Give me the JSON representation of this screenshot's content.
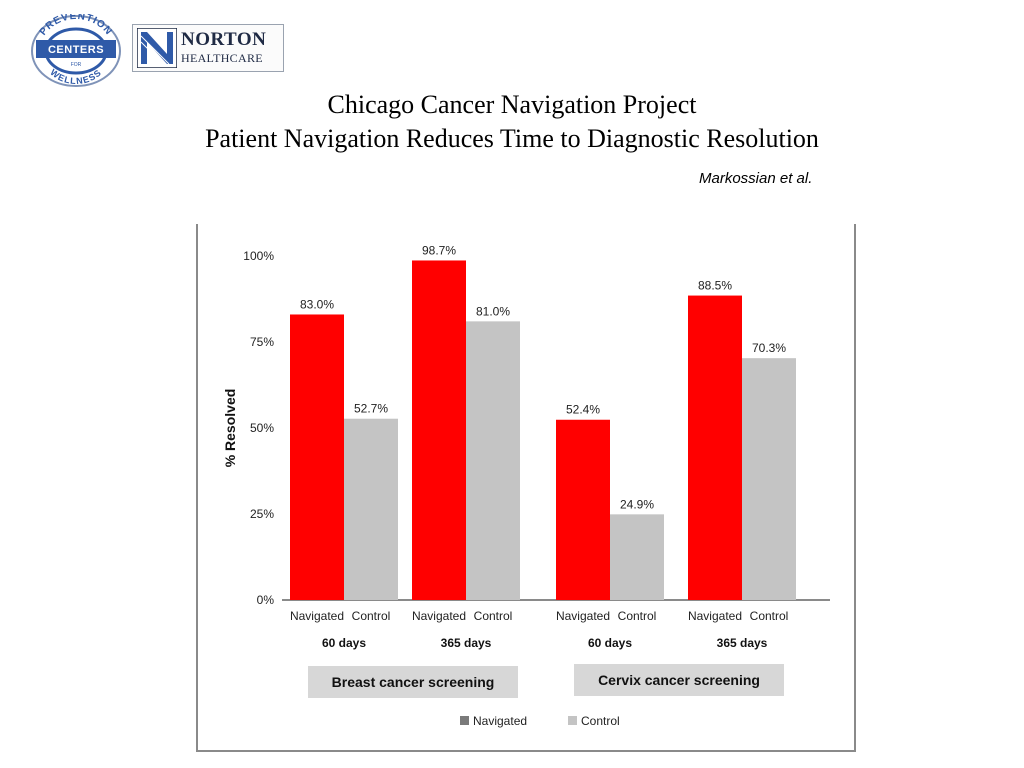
{
  "logos": {
    "prevention": {
      "ring_top": "PREVENTION",
      "center": "CENTERS",
      "small": "FOR",
      "ring_bottom": "WELLNESS"
    },
    "norton": {
      "line1": "NORTON",
      "line2": "HEALTHCARE"
    }
  },
  "slide": {
    "title_line1": "Chicago Cancer Navigation Project",
    "title_line2": "Patient Navigation Reduces Time to Diagnostic Resolution",
    "author": "Markossian et al."
  },
  "colors": {
    "navigated": "#ff0000",
    "control": "#c4c4c4",
    "legend_navigated": "#7a7a7a",
    "panel": "#d7d7d7",
    "logo_blue": "#2f5aa8",
    "logo_dark": "#1f2a44"
  },
  "chart_data": {
    "type": "bar",
    "ylabel": "% Resolved",
    "ylim": [
      0,
      100
    ],
    "yticks": [
      0,
      25,
      50,
      75,
      100
    ],
    "ytick_labels": [
      "0%",
      "25%",
      "50%",
      "75%",
      "100%"
    ],
    "series_names": [
      "Navigated",
      "Control"
    ],
    "groups": [
      {
        "label": "60 days",
        "panel": "breast",
        "values": [
          83.0,
          52.7
        ],
        "value_labels": [
          "83.0%",
          "52.7%"
        ]
      },
      {
        "label": "365 days",
        "panel": "breast",
        "values": [
          98.7,
          81.0
        ],
        "value_labels": [
          "98.7%",
          "81.0%"
        ]
      },
      {
        "label": "60 days",
        "panel": "cervix",
        "values": [
          52.4,
          24.9
        ],
        "value_labels": [
          "52.4%",
          "24.9%"
        ]
      },
      {
        "label": "365 days",
        "panel": "cervix",
        "values": [
          88.5,
          70.3
        ],
        "value_labels": [
          "88.5%",
          "70.3%"
        ]
      }
    ],
    "panels": [
      {
        "key": "breast",
        "label": "Breast cancer screening"
      },
      {
        "key": "cervix",
        "label": "Cervix cancer screening"
      }
    ],
    "legend": [
      "Navigated",
      "Control"
    ],
    "legend_placement": "bottom"
  }
}
